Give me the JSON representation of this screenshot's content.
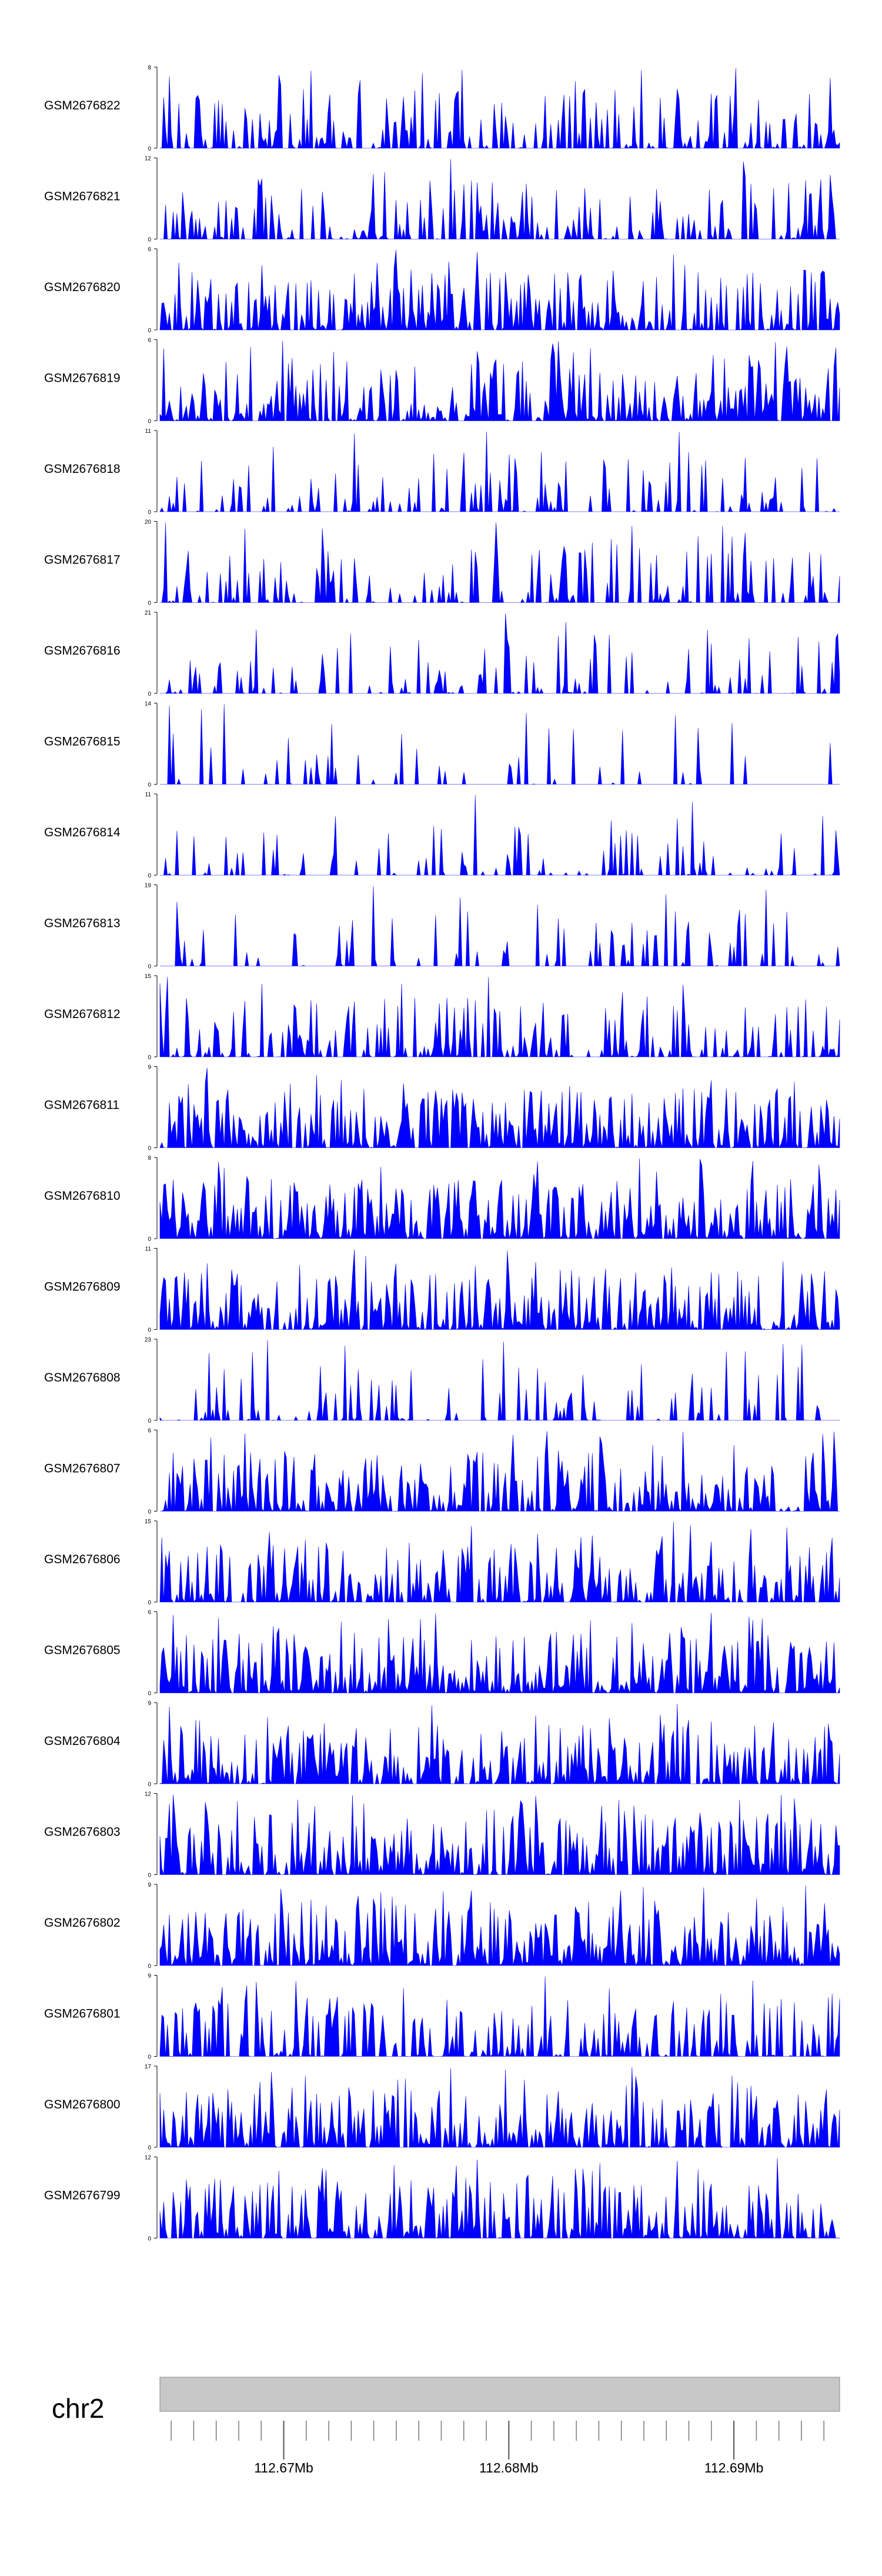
{
  "chart_data": {
    "type": "area",
    "colors": {
      "fill": "#0000ff",
      "axis": "#000000",
      "ideogram": "#c8c8c8",
      "ideogram_border": "#888888"
    },
    "x_range": [
      112.6645,
      112.6947
    ],
    "x_unit": "Mb",
    "tracks": [
      {
        "name": "GSM2676822",
        "ymax": "8",
        "ymin": "0",
        "max_value": 8,
        "seed": 822,
        "density": 0.55
      },
      {
        "name": "GSM2676821",
        "ymax": "12",
        "ymin": "0",
        "max_value": 12,
        "seed": 821,
        "density": 0.5
      },
      {
        "name": "GSM2676820",
        "ymax": "6",
        "ymin": "0",
        "max_value": 6,
        "seed": 820,
        "density": 0.75
      },
      {
        "name": "GSM2676819",
        "ymax": "6",
        "ymin": "0",
        "max_value": 6,
        "seed": 819,
        "density": 0.8
      },
      {
        "name": "GSM2676818",
        "ymax": "11",
        "ymin": "0",
        "max_value": 11,
        "seed": 818,
        "density": 0.3
      },
      {
        "name": "GSM2676817",
        "ymax": "20",
        "ymin": "0",
        "max_value": 20,
        "seed": 817,
        "density": 0.35
      },
      {
        "name": "GSM2676816",
        "ymax": "21",
        "ymin": "0",
        "max_value": 21,
        "seed": 816,
        "density": 0.3
      },
      {
        "name": "GSM2676815",
        "ymax": "14",
        "ymin": "0",
        "max_value": 14,
        "seed": 815,
        "density": 0.12
      },
      {
        "name": "GSM2676814",
        "ymax": "11",
        "ymin": "0",
        "max_value": 11,
        "seed": 814,
        "density": 0.25
      },
      {
        "name": "GSM2676813",
        "ymax": "19",
        "ymin": "0",
        "max_value": 19,
        "seed": 813,
        "density": 0.2
      },
      {
        "name": "GSM2676812",
        "ymax": "15",
        "ymin": "0",
        "max_value": 15,
        "seed": 812,
        "density": 0.5
      },
      {
        "name": "GSM2676811",
        "ymax": "9",
        "ymin": "0",
        "max_value": 9,
        "seed": 811,
        "density": 0.85
      },
      {
        "name": "GSM2676810",
        "ymax": "8",
        "ymin": "0",
        "max_value": 8,
        "seed": 810,
        "density": 0.9
      },
      {
        "name": "GSM2676809",
        "ymax": "11",
        "ymin": "0",
        "max_value": 11,
        "seed": 809,
        "density": 0.8
      },
      {
        "name": "GSM2676808",
        "ymax": "23",
        "ymin": "0",
        "max_value": 23,
        "seed": 808,
        "density": 0.3
      },
      {
        "name": "GSM2676807",
        "ymax": "6",
        "ymin": "0",
        "max_value": 6,
        "seed": 807,
        "density": 0.8
      },
      {
        "name": "GSM2676806",
        "ymax": "15",
        "ymin": "0",
        "max_value": 15,
        "seed": 806,
        "density": 0.7
      },
      {
        "name": "GSM2676805",
        "ymax": "6",
        "ymin": "0",
        "max_value": 6,
        "seed": 805,
        "density": 0.9
      },
      {
        "name": "GSM2676804",
        "ymax": "9",
        "ymin": "0",
        "max_value": 9,
        "seed": 804,
        "density": 0.8
      },
      {
        "name": "GSM2676803",
        "ymax": "12",
        "ymin": "0",
        "max_value": 12,
        "seed": 803,
        "density": 0.85
      },
      {
        "name": "GSM2676802",
        "ymax": "9",
        "ymin": "0",
        "max_value": 9,
        "seed": 802,
        "density": 0.9
      },
      {
        "name": "GSM2676801",
        "ymax": "9",
        "ymin": "0",
        "max_value": 9,
        "seed": 801,
        "density": 0.6
      },
      {
        "name": "GSM2676800",
        "ymax": "17",
        "ymin": "0",
        "max_value": 17,
        "seed": 800,
        "density": 0.8
      },
      {
        "name": "GSM2676799",
        "ymax": "12",
        "ymin": "0",
        "max_value": 12,
        "seed": 799,
        "density": 0.75
      }
    ],
    "genome_axis": {
      "chromosome": "chr2",
      "major_ticks": [
        {
          "value": 112.67,
          "label": "112.67Mb"
        },
        {
          "value": 112.68,
          "label": "112.68Mb"
        },
        {
          "value": 112.69,
          "label": "112.69Mb"
        }
      ],
      "minor_step": 0.001
    }
  }
}
